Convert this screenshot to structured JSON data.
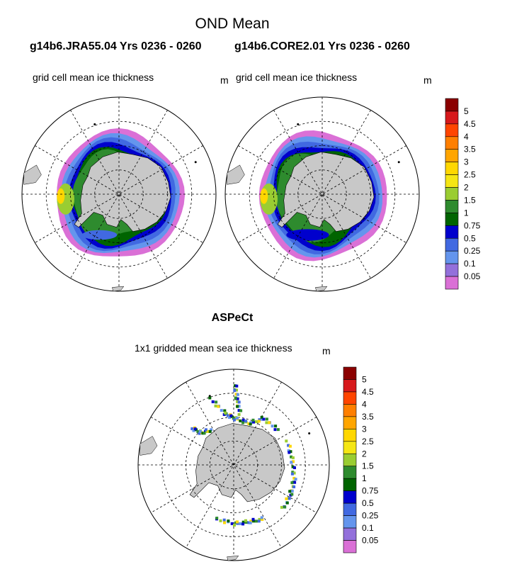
{
  "figure": {
    "title": "OND Mean",
    "subtitle_left": "g14b6.JRA55.04  Yrs 0236 - 0260",
    "subtitle_right": "g14b6.CORE2.01  Yrs 0236 - 0260"
  },
  "panels": [
    {
      "label": "grid cell mean ice thickness",
      "unit": "m"
    },
    {
      "label": "grid cell mean ice thickness",
      "unit": "m"
    }
  ],
  "observations": {
    "title": "ASPeCt",
    "label": "1x1 gridded mean sea ice thickness",
    "unit": "m"
  },
  "colorbar": {
    "levels": [
      "5",
      "4.5",
      "4",
      "3.5",
      "3",
      "2.5",
      "2",
      "1.5",
      "1",
      "0.75",
      "0.5",
      "0.25",
      "0.1",
      "0.05"
    ],
    "colors": [
      "#8b0000",
      "#d7191c",
      "#ff4500",
      "#ff7f00",
      "#ffa500",
      "#ffd700",
      "#f5e614",
      "#9acd32",
      "#2e8b2e",
      "#006400",
      "#0000cd",
      "#4169e1",
      "#6495ed",
      "#9370db",
      "#da70d6"
    ]
  },
  "map_colors": {
    "land": "#c8c8c8",
    "ocean": "#ffffff"
  }
}
